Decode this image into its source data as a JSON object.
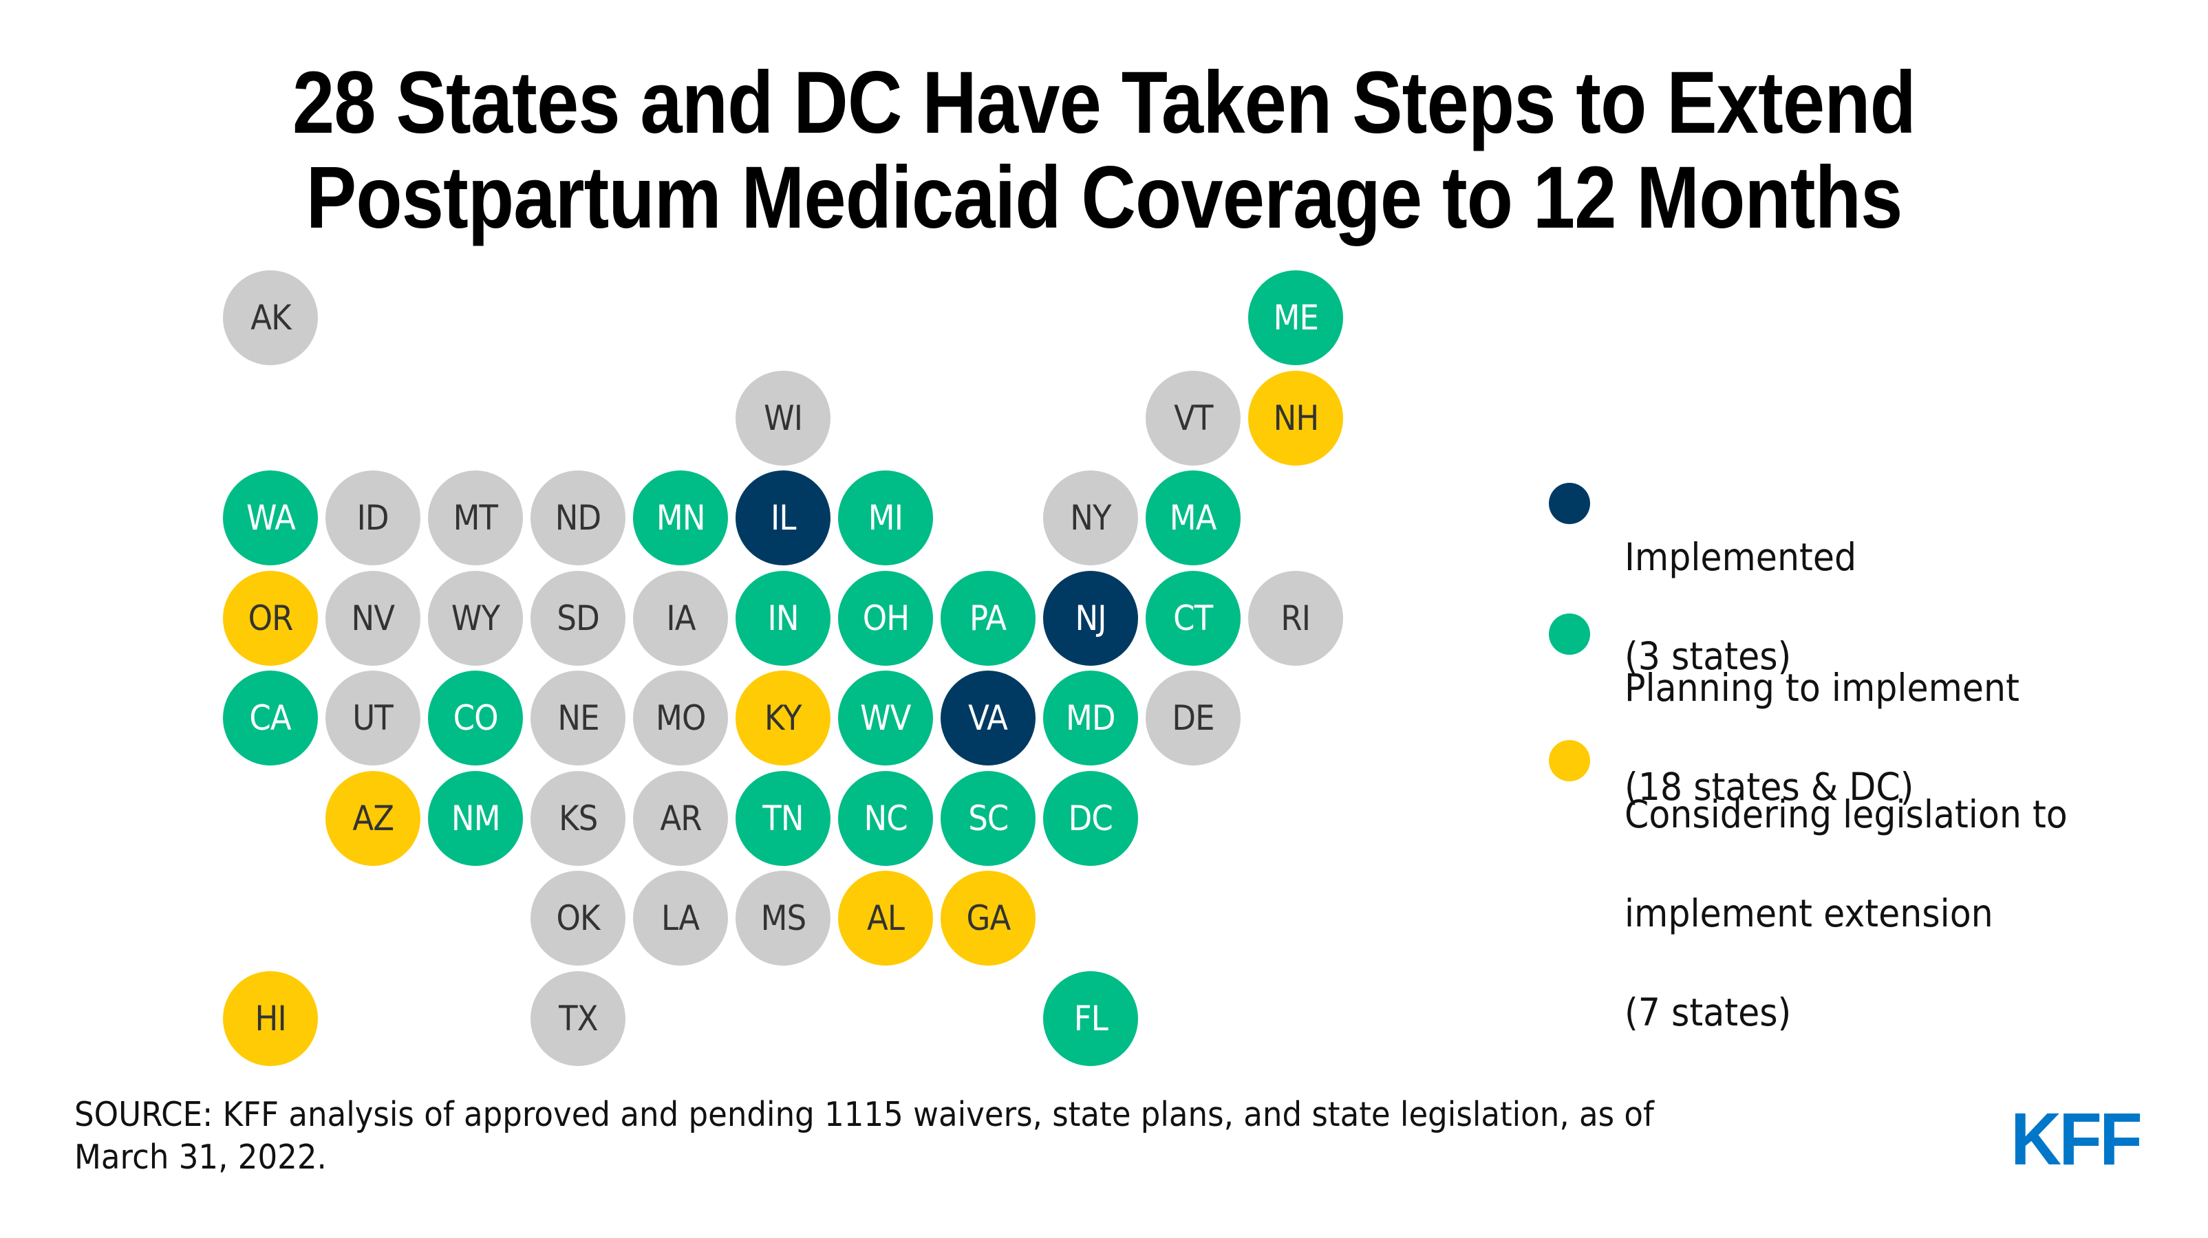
{
  "title": {
    "line1": "28 States and DC Have Taken Steps to Extend",
    "line2": "Postpartum Medicaid Coverage to 12 Months"
  },
  "colors": {
    "implemented": "#003A63",
    "planning": "#00BC87",
    "considering": "#FFCB05",
    "none": "#CCCCCC",
    "label_dark": "#333333",
    "label_light": "#FFFFFF",
    "brand": "#0077C8"
  },
  "legend": [
    {
      "key": "implemented",
      "lines": [
        "Implemented",
        "(3 states)"
      ]
    },
    {
      "key": "planning",
      "lines": [
        "Planning to implement",
        "(18 states & DC)"
      ]
    },
    {
      "key": "considering",
      "lines": [
        "Considering legislation to",
        "implement extension",
        "(7 states)"
      ]
    }
  ],
  "states": [
    {
      "abbr": "AK",
      "status": "none",
      "row": 0,
      "col": 0
    },
    {
      "abbr": "ME",
      "status": "planning",
      "row": 0,
      "col": 10
    },
    {
      "abbr": "WI",
      "status": "none",
      "row": 1,
      "col": 5
    },
    {
      "abbr": "VT",
      "status": "none",
      "row": 1,
      "col": 9
    },
    {
      "abbr": "NH",
      "status": "considering",
      "row": 1,
      "col": 10
    },
    {
      "abbr": "WA",
      "status": "planning",
      "row": 2,
      "col": 0
    },
    {
      "abbr": "ID",
      "status": "none",
      "row": 2,
      "col": 1
    },
    {
      "abbr": "MT",
      "status": "none",
      "row": 2,
      "col": 2
    },
    {
      "abbr": "ND",
      "status": "none",
      "row": 2,
      "col": 3
    },
    {
      "abbr": "MN",
      "status": "planning",
      "row": 2,
      "col": 4
    },
    {
      "abbr": "IL",
      "status": "implemented",
      "row": 2,
      "col": 5
    },
    {
      "abbr": "MI",
      "status": "planning",
      "row": 2,
      "col": 6
    },
    {
      "abbr": "NY",
      "status": "none",
      "row": 2,
      "col": 8
    },
    {
      "abbr": "MA",
      "status": "planning",
      "row": 2,
      "col": 9
    },
    {
      "abbr": "OR",
      "status": "considering",
      "row": 3,
      "col": 0
    },
    {
      "abbr": "NV",
      "status": "none",
      "row": 3,
      "col": 1
    },
    {
      "abbr": "WY",
      "status": "none",
      "row": 3,
      "col": 2
    },
    {
      "abbr": "SD",
      "status": "none",
      "row": 3,
      "col": 3
    },
    {
      "abbr": "IA",
      "status": "none",
      "row": 3,
      "col": 4
    },
    {
      "abbr": "IN",
      "status": "planning",
      "row": 3,
      "col": 5
    },
    {
      "abbr": "OH",
      "status": "planning",
      "row": 3,
      "col": 6
    },
    {
      "abbr": "PA",
      "status": "planning",
      "row": 3,
      "col": 7
    },
    {
      "abbr": "NJ",
      "status": "implemented",
      "row": 3,
      "col": 8
    },
    {
      "abbr": "CT",
      "status": "planning",
      "row": 3,
      "col": 9
    },
    {
      "abbr": "RI",
      "status": "none",
      "row": 3,
      "col": 10
    },
    {
      "abbr": "CA",
      "status": "planning",
      "row": 4,
      "col": 0
    },
    {
      "abbr": "UT",
      "status": "none",
      "row": 4,
      "col": 1
    },
    {
      "abbr": "CO",
      "status": "planning",
      "row": 4,
      "col": 2
    },
    {
      "abbr": "NE",
      "status": "none",
      "row": 4,
      "col": 3
    },
    {
      "abbr": "MO",
      "status": "none",
      "row": 4,
      "col": 4
    },
    {
      "abbr": "KY",
      "status": "considering",
      "row": 4,
      "col": 5
    },
    {
      "abbr": "WV",
      "status": "planning",
      "row": 4,
      "col": 6
    },
    {
      "abbr": "VA",
      "status": "implemented",
      "row": 4,
      "col": 7
    },
    {
      "abbr": "MD",
      "status": "planning",
      "row": 4,
      "col": 8
    },
    {
      "abbr": "DE",
      "status": "none",
      "row": 4,
      "col": 9
    },
    {
      "abbr": "AZ",
      "status": "considering",
      "row": 5,
      "col": 1
    },
    {
      "abbr": "NM",
      "status": "planning",
      "row": 5,
      "col": 2
    },
    {
      "abbr": "KS",
      "status": "none",
      "row": 5,
      "col": 3
    },
    {
      "abbr": "AR",
      "status": "none",
      "row": 5,
      "col": 4
    },
    {
      "abbr": "TN",
      "status": "planning",
      "row": 5,
      "col": 5
    },
    {
      "abbr": "NC",
      "status": "planning",
      "row": 5,
      "col": 6
    },
    {
      "abbr": "SC",
      "status": "planning",
      "row": 5,
      "col": 7
    },
    {
      "abbr": "DC",
      "status": "planning",
      "row": 5,
      "col": 8
    },
    {
      "abbr": "OK",
      "status": "none",
      "row": 6,
      "col": 3
    },
    {
      "abbr": "LA",
      "status": "none",
      "row": 6,
      "col": 4
    },
    {
      "abbr": "MS",
      "status": "none",
      "row": 6,
      "col": 5
    },
    {
      "abbr": "AL",
      "status": "considering",
      "row": 6,
      "col": 6
    },
    {
      "abbr": "GA",
      "status": "considering",
      "row": 6,
      "col": 7
    },
    {
      "abbr": "HI",
      "status": "considering",
      "row": 7,
      "col": 0
    },
    {
      "abbr": "TX",
      "status": "none",
      "row": 7,
      "col": 3
    },
    {
      "abbr": "FL",
      "status": "planning",
      "row": 7,
      "col": 8
    }
  ],
  "source": {
    "lines": [
      "SOURCE: KFF analysis of approved and pending 1115 waivers, state plans, and state legislation, as of",
      "March 31, 2022."
    ]
  },
  "logo": {
    "text": "KFF"
  }
}
